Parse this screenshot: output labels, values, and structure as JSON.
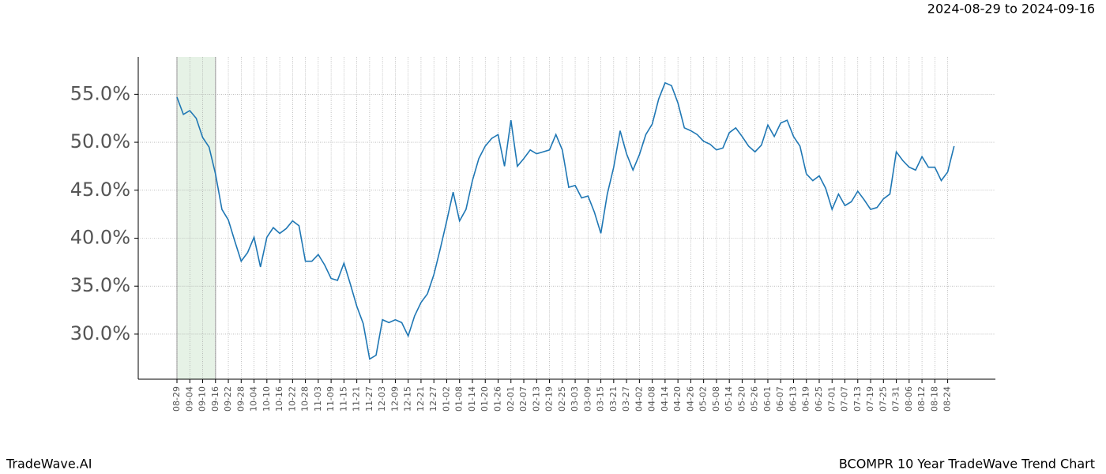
{
  "brand": "TradeWave.AI",
  "chart_data": {
    "type": "line",
    "title": "BCOMPR 10 Year TradeWave Trend Chart",
    "subtitle": "2024-08-29 to 2024-09-16",
    "categories": [
      "08-29",
      null,
      "09-04",
      null,
      "09-10",
      null,
      "09-16",
      null,
      "09-22",
      null,
      "09-28",
      null,
      "10-04",
      null,
      "10-10",
      null,
      "10-16",
      null,
      "10-22",
      null,
      "10-28",
      null,
      "11-03",
      null,
      "11-09",
      null,
      "11-15",
      null,
      "11-21",
      null,
      "11-27",
      null,
      "12-03",
      null,
      "12-09",
      null,
      "12-15",
      null,
      "12-21",
      null,
      "12-27",
      null,
      "01-02",
      null,
      "01-08",
      null,
      "01-14",
      null,
      "01-20",
      null,
      "01-26",
      null,
      "02-01",
      null,
      "02-07",
      null,
      "02-13",
      null,
      "02-19",
      null,
      "02-25",
      null,
      "03-03",
      null,
      "03-09",
      null,
      "03-15",
      null,
      "03-21",
      null,
      "03-27",
      null,
      "04-02",
      null,
      "04-08",
      null,
      "04-14",
      null,
      "04-20",
      null,
      "04-26",
      null,
      "05-02",
      null,
      "05-08",
      null,
      "05-14",
      null,
      "05-20",
      null,
      "05-26",
      null,
      "06-01",
      null,
      "06-07",
      null,
      "06-13",
      null,
      "06-19",
      null,
      "06-25",
      null,
      "07-01",
      null,
      "07-07",
      null,
      "07-13",
      null,
      "07-19",
      null,
      "07-25",
      null,
      "07-31",
      null,
      "08-06",
      null,
      "08-12",
      null,
      "08-18",
      null,
      "08-24",
      null
    ],
    "series": [
      {
        "name": "BCOMPR",
        "color": "#1f77b4",
        "values": [
          54.7,
          52.9,
          53.3,
          52.5,
          50.5,
          49.5,
          46.7,
          43.0,
          41.9,
          39.7,
          37.6,
          38.5,
          40.1,
          37.0,
          40.1,
          41.1,
          40.5,
          41.0,
          41.8,
          41.3,
          37.6,
          37.6,
          38.3,
          37.2,
          35.8,
          35.6,
          37.4,
          35.2,
          32.9,
          31.1,
          27.4,
          27.8,
          31.5,
          31.2,
          31.5,
          31.2,
          29.8,
          31.9,
          33.3,
          34.2,
          36.2,
          38.9,
          41.8,
          44.8,
          41.8,
          43.0,
          46.0,
          48.3,
          49.6,
          50.4,
          50.8,
          47.5,
          52.3,
          47.5,
          48.3,
          49.2,
          48.8,
          49.0,
          49.2,
          50.8,
          49.2,
          45.3,
          45.5,
          44.2,
          44.4,
          42.7,
          40.5,
          44.6,
          47.4,
          51.2,
          48.8,
          47.1,
          48.7,
          50.8,
          51.9,
          54.5,
          56.2,
          55.9,
          54.1,
          51.5,
          51.2,
          50.8,
          50.1,
          49.8,
          49.2,
          49.4,
          51.0,
          51.5,
          50.6,
          49.6,
          49.0,
          49.7,
          51.8,
          50.6,
          52.0,
          52.3,
          50.6,
          49.6,
          46.7,
          46.0,
          46.5,
          45.2,
          43.0,
          44.6,
          43.4,
          43.8,
          44.9,
          44.0,
          43.0,
          43.2,
          44.1,
          44.6,
          49.0,
          48.1,
          47.4,
          47.1,
          48.5,
          47.4,
          47.4,
          46.0,
          46.9,
          49.6
        ]
      }
    ],
    "ylim": [
      25.3,
      58.9
    ],
    "yticks": [
      {
        "value": 30,
        "label": "30.0%"
      },
      {
        "value": 35,
        "label": "35.0%"
      },
      {
        "value": 40,
        "label": "40.0%"
      },
      {
        "value": 45,
        "label": "45.0%"
      },
      {
        "value": 50,
        "label": "50.0%"
      },
      {
        "value": 55,
        "label": "55.0%"
      }
    ],
    "grid": true,
    "highlight": {
      "from": "08-29",
      "to": "09-16",
      "color": "#e6f2e6"
    }
  }
}
